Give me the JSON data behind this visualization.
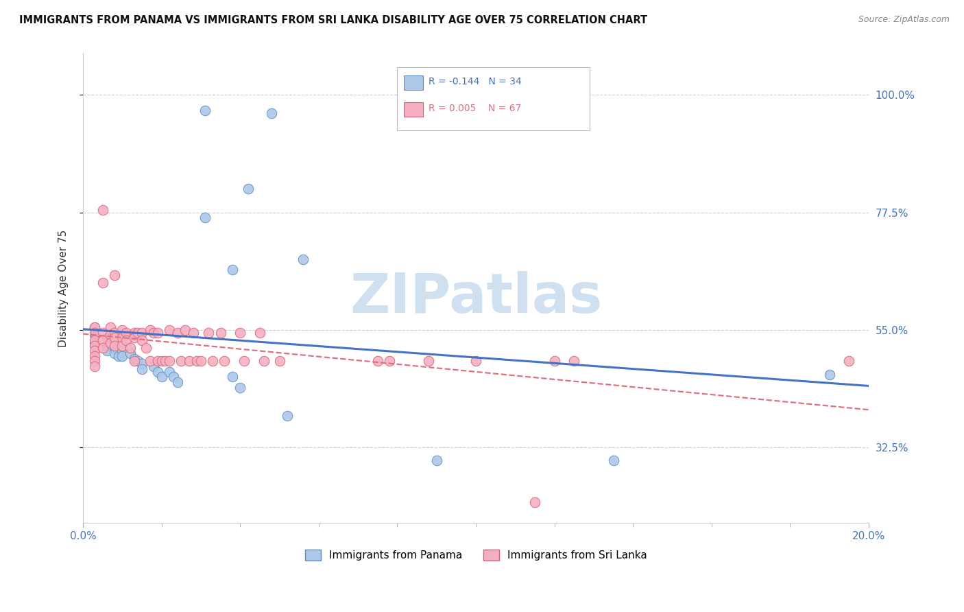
{
  "title": "IMMIGRANTS FROM PANAMA VS IMMIGRANTS FROM SRI LANKA DISABILITY AGE OVER 75 CORRELATION CHART",
  "source": "Source: ZipAtlas.com",
  "ylabel": "Disability Age Over 75",
  "yticks": [
    0.325,
    0.55,
    0.775,
    1.0
  ],
  "ytick_labels": [
    "32.5%",
    "55.0%",
    "77.5%",
    "100.0%"
  ],
  "xmin": 0.0,
  "xmax": 0.2,
  "ymin": 0.18,
  "ymax": 1.08,
  "color_panama": "#adc8e8",
  "color_srilanka": "#f5afc0",
  "color_edge_panama": "#5b8ec4",
  "color_edge_srilanka": "#d9607a",
  "color_line_panama": "#4472c4",
  "color_line_srilanka": "#e07080",
  "watermark_color": "#cfe0f0",
  "panama_x": [
    0.031,
    0.048,
    0.042,
    0.031,
    0.056,
    0.038,
    0.003,
    0.003,
    0.003,
    0.006,
    0.006,
    0.006,
    0.008,
    0.008,
    0.009,
    0.01,
    0.01,
    0.012,
    0.013,
    0.014,
    0.015,
    0.015,
    0.018,
    0.019,
    0.02,
    0.022,
    0.023,
    0.024,
    0.038,
    0.04,
    0.052,
    0.09,
    0.135,
    0.19
  ],
  "panama_y": [
    0.97,
    0.965,
    0.82,
    0.765,
    0.685,
    0.665,
    0.555,
    0.54,
    0.525,
    0.535,
    0.52,
    0.51,
    0.515,
    0.505,
    0.5,
    0.51,
    0.5,
    0.505,
    0.495,
    0.49,
    0.485,
    0.475,
    0.48,
    0.47,
    0.46,
    0.47,
    0.46,
    0.45,
    0.46,
    0.44,
    0.385,
    0.3,
    0.3,
    0.465
  ],
  "srilanka_x": [
    0.003,
    0.003,
    0.003,
    0.003,
    0.003,
    0.003,
    0.003,
    0.003,
    0.005,
    0.005,
    0.005,
    0.005,
    0.005,
    0.007,
    0.007,
    0.007,
    0.008,
    0.008,
    0.008,
    0.008,
    0.01,
    0.01,
    0.01,
    0.011,
    0.011,
    0.012,
    0.013,
    0.013,
    0.013,
    0.014,
    0.015,
    0.015,
    0.016,
    0.017,
    0.017,
    0.018,
    0.019,
    0.019,
    0.02,
    0.021,
    0.022,
    0.022,
    0.024,
    0.025,
    0.026,
    0.027,
    0.028,
    0.029,
    0.03,
    0.032,
    0.033,
    0.035,
    0.036,
    0.04,
    0.041,
    0.045,
    0.046,
    0.05,
    0.075,
    0.078,
    0.088,
    0.1,
    0.115,
    0.125,
    0.195,
    0.12
  ],
  "srilanka_y": [
    0.555,
    0.545,
    0.53,
    0.52,
    0.51,
    0.5,
    0.49,
    0.48,
    0.78,
    0.64,
    0.545,
    0.53,
    0.515,
    0.555,
    0.54,
    0.525,
    0.655,
    0.545,
    0.535,
    0.52,
    0.55,
    0.535,
    0.52,
    0.545,
    0.53,
    0.515,
    0.545,
    0.535,
    0.49,
    0.545,
    0.545,
    0.53,
    0.515,
    0.55,
    0.49,
    0.545,
    0.545,
    0.49,
    0.49,
    0.49,
    0.55,
    0.49,
    0.545,
    0.49,
    0.55,
    0.49,
    0.545,
    0.49,
    0.49,
    0.545,
    0.49,
    0.545,
    0.49,
    0.545,
    0.49,
    0.545,
    0.49,
    0.49,
    0.49,
    0.49,
    0.49,
    0.49,
    0.22,
    0.49,
    0.49,
    0.49
  ]
}
